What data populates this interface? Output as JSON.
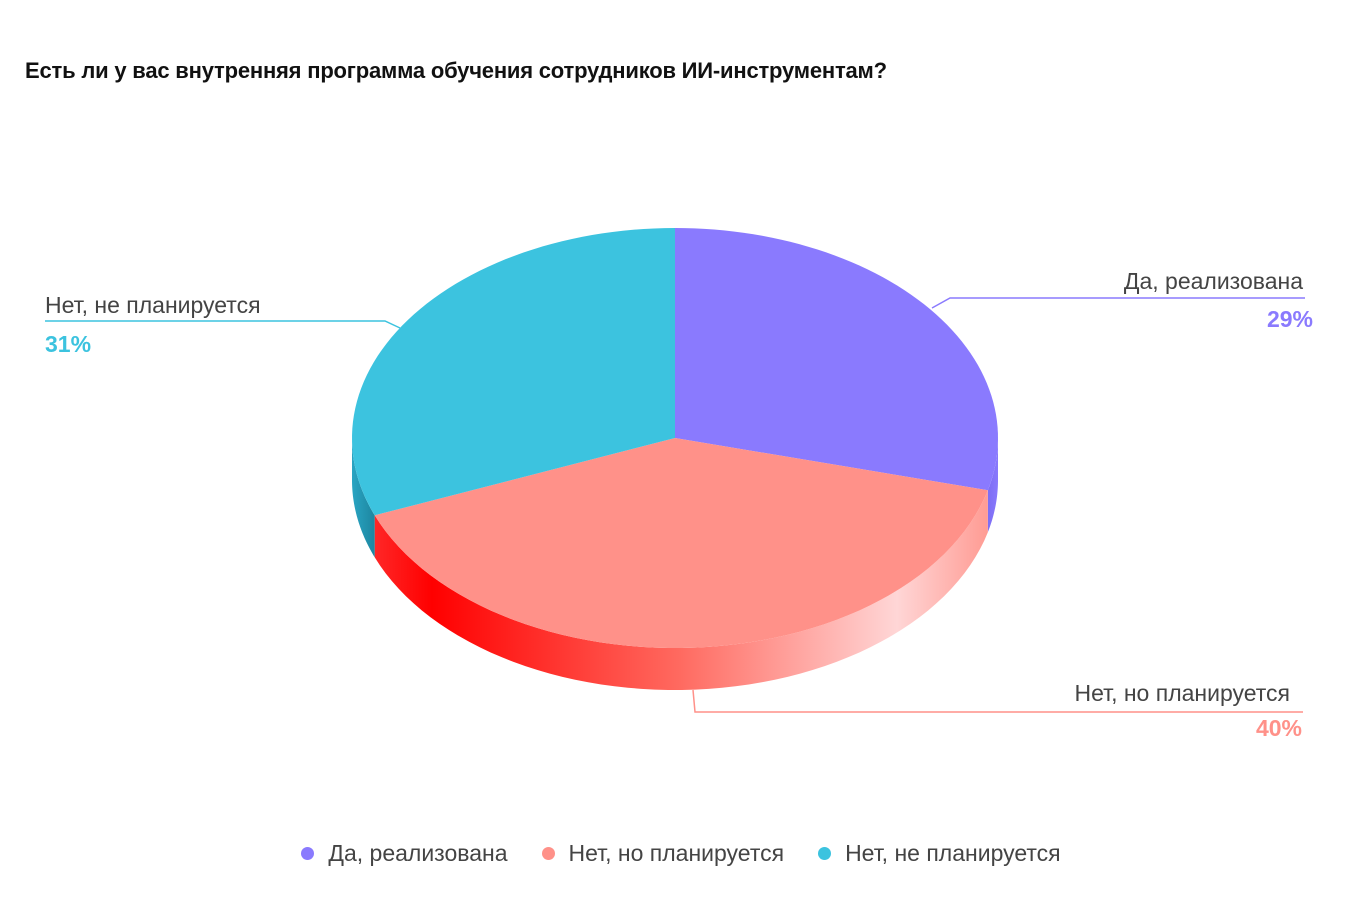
{
  "chart_data": {
    "type": "pie",
    "title": "Есть ли у вас внутренняя программа обучения сотрудников ИИ-инструментам?",
    "series": [
      {
        "name": "Да, реализована",
        "value": 29,
        "label": "29%",
        "color": "#8A7AFE"
      },
      {
        "name": "Нет, но планируется",
        "value": 40,
        "label": "40%",
        "color": "#FF9189"
      },
      {
        "name": "Нет, не планируется",
        "value": 31,
        "label": "31%",
        "color": "#3CC3DF"
      }
    ],
    "legend_position": "bottom"
  }
}
